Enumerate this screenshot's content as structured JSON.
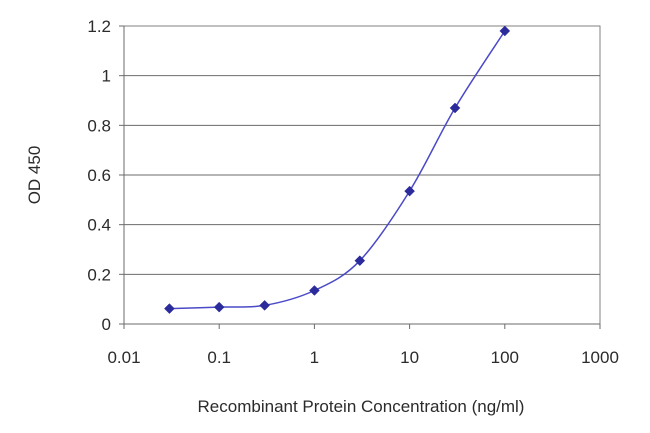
{
  "chart_data": {
    "type": "line",
    "title": "",
    "xlabel": "Recombinant Protein Concentration (ng/ml)",
    "ylabel": "OD 450",
    "x_scale": "log",
    "xlim": [
      0.01,
      1000
    ],
    "ylim": [
      0,
      1.2
    ],
    "x_ticks": [
      0.01,
      0.1,
      1,
      10,
      100,
      1000
    ],
    "x_tick_labels": [
      "0.01",
      "0.1",
      "1",
      "10",
      "100",
      "1000"
    ],
    "y_ticks": [
      0,
      0.2,
      0.4,
      0.6,
      0.8,
      1,
      1.2
    ],
    "y_tick_labels": [
      "0",
      "0.2",
      "0.4",
      "0.6",
      "0.8",
      "1",
      "1.2"
    ],
    "grid": "horizontal",
    "legend": "none",
    "series": [
      {
        "x": [
          0.03,
          0.1,
          0.3,
          1,
          3,
          10,
          30,
          100
        ],
        "y": [
          0.062,
          0.068,
          0.075,
          0.135,
          0.255,
          0.535,
          0.87,
          1.18
        ],
        "color": "#2b2b9b"
      }
    ]
  }
}
